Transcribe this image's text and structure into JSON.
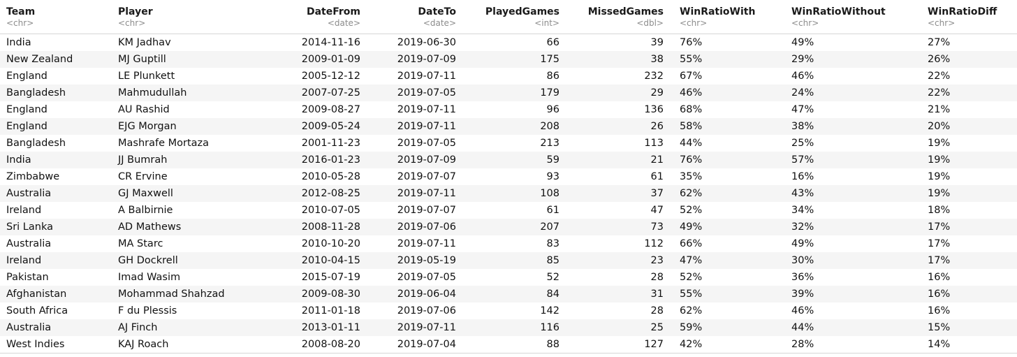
{
  "columns": [
    {
      "name": "Team",
      "type": "<chr>"
    },
    {
      "name": "Player",
      "type": "<chr>"
    },
    {
      "name": "DateFrom",
      "type": "<date>"
    },
    {
      "name": "DateTo",
      "type": "<date>"
    },
    {
      "name": "PlayedGames",
      "type": "<int>"
    },
    {
      "name": "MissedGames",
      "type": "<dbl>"
    },
    {
      "name": "WinRatioWith",
      "type": "<chr>"
    },
    {
      "name": "WinRatioWithout",
      "type": "<chr>"
    },
    {
      "name": "WinRatioDiff",
      "type": "<chr>"
    }
  ],
  "rows": [
    [
      "India",
      "KM Jadhav",
      "2014-11-16",
      "2019-06-30",
      "66",
      "39",
      "76%",
      "49%",
      "27%"
    ],
    [
      "New Zealand",
      "MJ Guptill",
      "2009-01-09",
      "2019-07-09",
      "175",
      "38",
      "55%",
      "29%",
      "26%"
    ],
    [
      "England",
      "LE Plunkett",
      "2005-12-12",
      "2019-07-11",
      "86",
      "232",
      "67%",
      "46%",
      "22%"
    ],
    [
      "Bangladesh",
      "Mahmudullah",
      "2007-07-25",
      "2019-07-05",
      "179",
      "29",
      "46%",
      "24%",
      "22%"
    ],
    [
      "England",
      "AU Rashid",
      "2009-08-27",
      "2019-07-11",
      "96",
      "136",
      "68%",
      "47%",
      "21%"
    ],
    [
      "England",
      "EJG Morgan",
      "2009-05-24",
      "2019-07-11",
      "208",
      "26",
      "58%",
      "38%",
      "20%"
    ],
    [
      "Bangladesh",
      "Mashrafe Mortaza",
      "2001-11-23",
      "2019-07-05",
      "213",
      "113",
      "44%",
      "25%",
      "19%"
    ],
    [
      "India",
      "JJ Bumrah",
      "2016-01-23",
      "2019-07-09",
      "59",
      "21",
      "76%",
      "57%",
      "19%"
    ],
    [
      "Zimbabwe",
      "CR Ervine",
      "2010-05-28",
      "2019-07-07",
      "93",
      "61",
      "35%",
      "16%",
      "19%"
    ],
    [
      "Australia",
      "GJ Maxwell",
      "2012-08-25",
      "2019-07-11",
      "108",
      "37",
      "62%",
      "43%",
      "19%"
    ],
    [
      "Ireland",
      "A Balbirnie",
      "2010-07-05",
      "2019-07-07",
      "61",
      "47",
      "52%",
      "34%",
      "18%"
    ],
    [
      "Sri Lanka",
      "AD Mathews",
      "2008-11-28",
      "2019-07-06",
      "207",
      "73",
      "49%",
      "32%",
      "17%"
    ],
    [
      "Australia",
      "MA Starc",
      "2010-10-20",
      "2019-07-11",
      "83",
      "112",
      "66%",
      "49%",
      "17%"
    ],
    [
      "Ireland",
      "GH Dockrell",
      "2010-04-15",
      "2019-05-19",
      "85",
      "23",
      "47%",
      "30%",
      "17%"
    ],
    [
      "Pakistan",
      "Imad Wasim",
      "2015-07-19",
      "2019-07-05",
      "52",
      "28",
      "52%",
      "36%",
      "16%"
    ],
    [
      "Afghanistan",
      "Mohammad Shahzad",
      "2009-08-30",
      "2019-06-04",
      "84",
      "31",
      "55%",
      "39%",
      "16%"
    ],
    [
      "South Africa",
      "F du Plessis",
      "2011-01-18",
      "2019-07-06",
      "142",
      "28",
      "62%",
      "46%",
      "16%"
    ],
    [
      "Australia",
      "AJ Finch",
      "2013-01-11",
      "2019-07-11",
      "116",
      "25",
      "59%",
      "44%",
      "15%"
    ],
    [
      "West Indies",
      "KAJ Roach",
      "2008-08-20",
      "2019-07-04",
      "88",
      "127",
      "42%",
      "28%",
      "14%"
    ]
  ]
}
